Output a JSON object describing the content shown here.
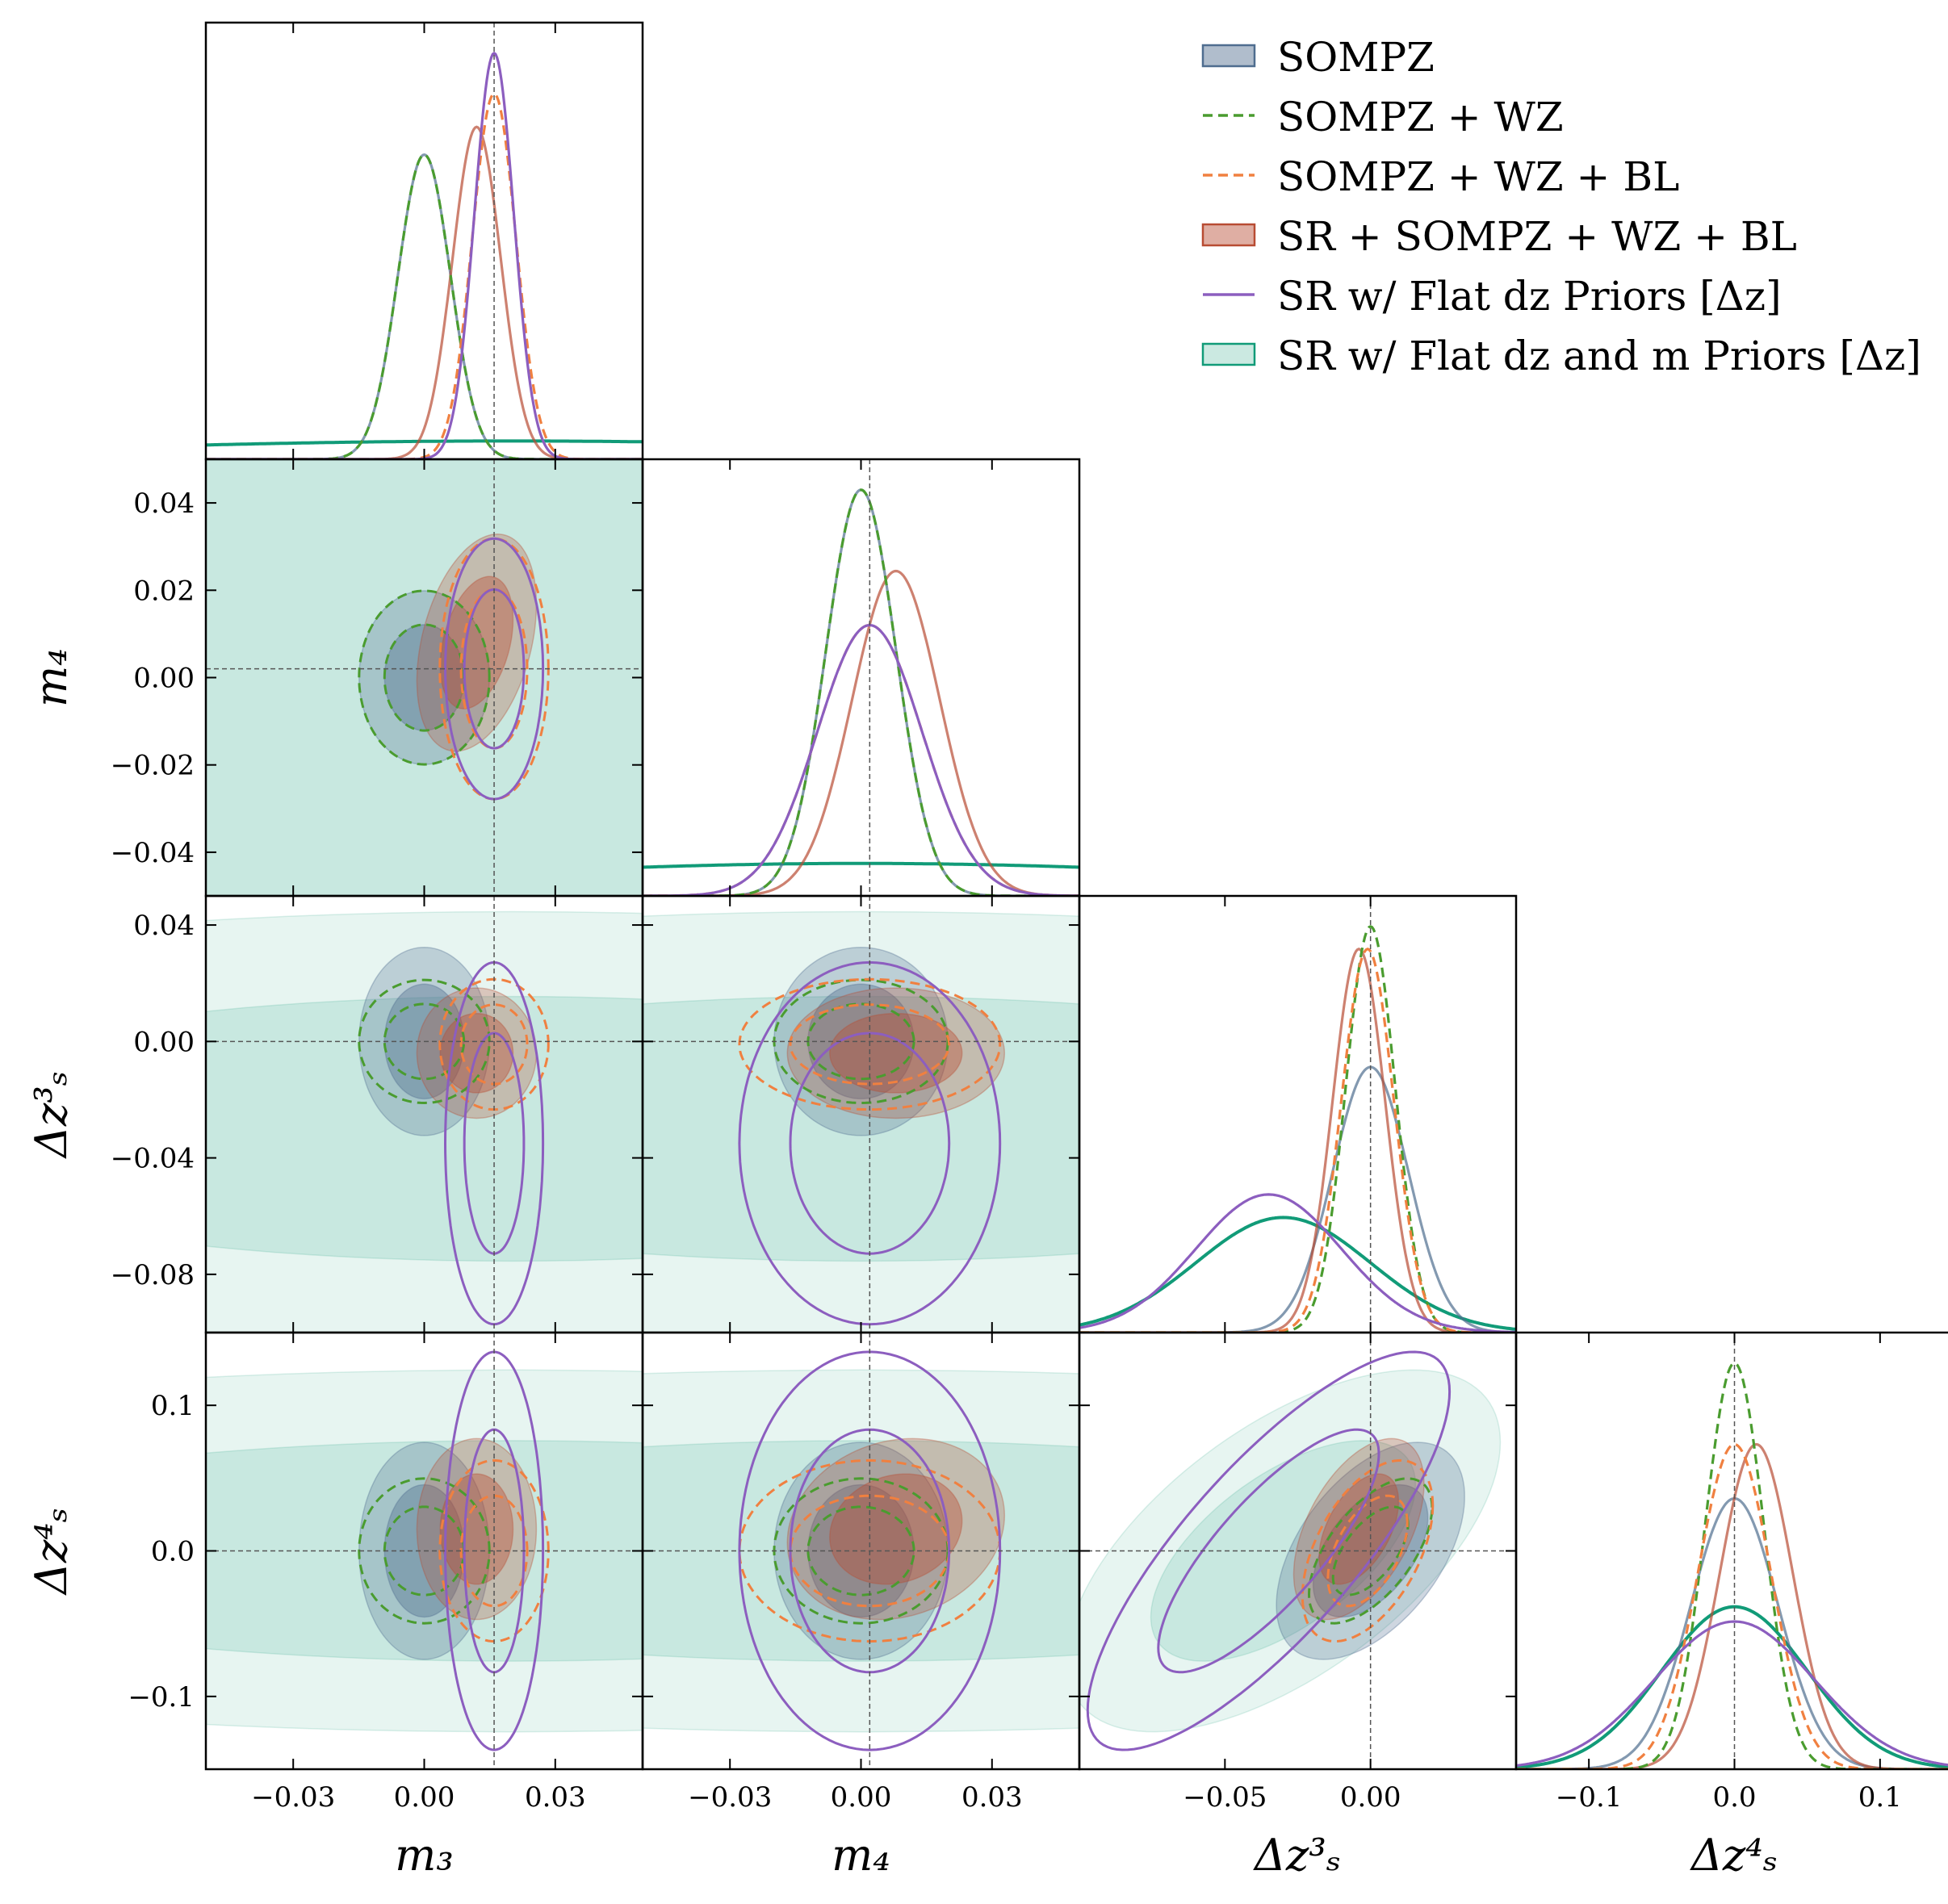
{
  "chart_data": {
    "type": "corner",
    "parameters": [
      {
        "key": "m3",
        "label": "m₃",
        "range": [
          -0.05,
          0.05
        ],
        "ticks": [
          -0.03,
          0.0,
          0.03
        ],
        "tick_labels": [
          "−0.03",
          "0.00",
          "0.03"
        ],
        "fiducial": 0.016
      },
      {
        "key": "m4",
        "label": "m₄",
        "range": [
          -0.05,
          0.05
        ],
        "ticks": [
          -0.04,
          -0.02,
          0.0,
          0.02,
          0.04
        ],
        "tick_labels": [
          "−0.04",
          "−0.02",
          "0.00",
          "0.02",
          "0.04"
        ],
        "x_ticks": [
          -0.03,
          0.0,
          0.03
        ],
        "x_tick_labels": [
          "−0.03",
          "0.00",
          "0.03"
        ],
        "fiducial": 0.002
      },
      {
        "key": "dz3",
        "label": "Δz³ₛ",
        "range": [
          -0.1,
          0.05
        ],
        "ticks": [
          -0.08,
          -0.04,
          0.0,
          0.04
        ],
        "tick_labels": [
          "−0.08",
          "−0.04",
          "0.00",
          "0.04"
        ],
        "x_ticks": [
          -0.05,
          0.0
        ],
        "x_tick_labels": [
          "−0.05",
          "0.00"
        ],
        "fiducial": 0.0
      },
      {
        "key": "dz4",
        "label": "Δz⁴ₛ",
        "range": [
          -0.15,
          0.15
        ],
        "ticks": [
          -0.1,
          0.0,
          0.1
        ],
        "tick_labels": [
          "−0.1",
          "0.0",
          "0.1"
        ],
        "fiducial": 0.0
      }
    ],
    "series": [
      {
        "name": "SOMPZ",
        "color": "#4f6d8f",
        "style": "filled",
        "mean": {
          "m3": 0.0,
          "m4": 0.0,
          "dz3": 0.0,
          "dz4": 0.0
        },
        "sigma": {
          "m3": 0.006,
          "m4": 0.008,
          "dz3": 0.013,
          "dz4": 0.03
        },
        "corr": {
          "dz3-dz4": 0.5
        }
      },
      {
        "name": "SOMPZ + WZ",
        "color": "#4a9c2f",
        "style": "dashed",
        "mean": {
          "m3": 0.0,
          "m4": 0.0,
          "dz3": 0.0,
          "dz4": 0.0
        },
        "sigma": {
          "m3": 0.006,
          "m4": 0.008,
          "dz3": 0.0085,
          "dz4": 0.02
        },
        "corr": {
          "dz3-dz4": 0.6
        }
      },
      {
        "name": "SOMPZ + WZ + BL",
        "color": "#f08040",
        "style": "dashed",
        "mean": {
          "m3": 0.016,
          "m4": 0.002,
          "dz3": -0.001,
          "dz4": 0.0
        },
        "sigma": {
          "m3": 0.005,
          "m4": 0.012,
          "dz3": 0.009,
          "dz4": 0.025
        },
        "corr": {
          "dz3-dz4": 0.5
        }
      },
      {
        "name": "SR + SOMPZ + WZ + BL",
        "color": "#b84c33",
        "style": "filled",
        "mean": {
          "m3": 0.012,
          "m4": 0.008,
          "dz3": -0.004,
          "dz4": 0.015
        },
        "sigma": {
          "m3": 0.0055,
          "m4": 0.01,
          "dz3": 0.009,
          "dz4": 0.025
        },
        "corr": {
          "m3-m4": 0.35,
          "m4-dz4": 0.15,
          "dz3-dz4": 0.5
        }
      },
      {
        "name": "SR w/ Flat dz Priors [Δz]",
        "color": "#8c5ebf",
        "style": "solid",
        "mean": {
          "m3": 0.016,
          "m4": 0.002,
          "dz3": -0.035,
          "dz4": 0.0
        },
        "sigma": {
          "m3": 0.0045,
          "m4": 0.012,
          "dz3": 0.025,
          "dz4": 0.055
        },
        "corr": {
          "dz3-dz4": 0.8
        }
      },
      {
        "name": "SR w/ Flat dz and m Priors [Δz]",
        "color": "#119b78",
        "style": "filled",
        "mean": {
          "m3": 0.02,
          "m4": 0.0,
          "dz3": -0.03,
          "dz4": 0.0
        },
        "sigma": {
          "m3": 0.1,
          "m4": 0.1,
          "dz3": 0.03,
          "dz4": 0.05
        },
        "corr": {
          "m3-m4": 0.6,
          "dz3-dz4": 0.6
        }
      }
    ],
    "legend_position": "top-right",
    "grid": false
  }
}
